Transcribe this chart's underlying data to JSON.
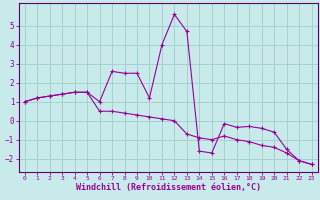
{
  "xlabel": "Windchill (Refroidissement éolien,°C)",
  "bg_color": "#c8eaea",
  "grid_color": "#a0cece",
  "line_color": "#990099",
  "spine_color": "#660066",
  "x_hours": [
    0,
    1,
    2,
    3,
    4,
    5,
    6,
    7,
    8,
    9,
    10,
    11,
    12,
    13,
    14,
    15,
    16,
    17,
    18,
    19,
    20,
    21,
    22,
    23
  ],
  "series1": [
    1.0,
    1.2,
    1.3,
    1.4,
    1.5,
    1.5,
    1.0,
    2.6,
    2.5,
    2.5,
    1.2,
    4.0,
    5.6,
    4.7,
    -1.6,
    -1.7,
    -0.15,
    -0.35,
    -0.3,
    -0.4,
    -0.6,
    -1.5,
    -2.1,
    -2.3
  ],
  "series2": [
    1.0,
    1.2,
    1.3,
    1.4,
    1.5,
    1.5,
    0.5,
    0.5,
    0.4,
    0.3,
    0.2,
    0.1,
    0.0,
    -0.7,
    -0.9,
    -1.0,
    -0.8,
    -1.0,
    -1.1,
    -1.3,
    -1.4,
    -1.7,
    -2.1,
    -2.3
  ],
  "ylim": [
    -2.7,
    6.2
  ],
  "xlim": [
    -0.5,
    23.5
  ],
  "yticks": [
    -2,
    -1,
    0,
    1,
    2,
    3,
    4,
    5
  ],
  "xticks": [
    0,
    1,
    2,
    3,
    4,
    5,
    6,
    7,
    8,
    9,
    10,
    11,
    12,
    13,
    14,
    15,
    16,
    17,
    18,
    19,
    20,
    21,
    22,
    23
  ],
  "xlabel_fontsize": 6,
  "tick_fontsize": 5.5,
  "line_width": 0.8,
  "marker_size": 3
}
